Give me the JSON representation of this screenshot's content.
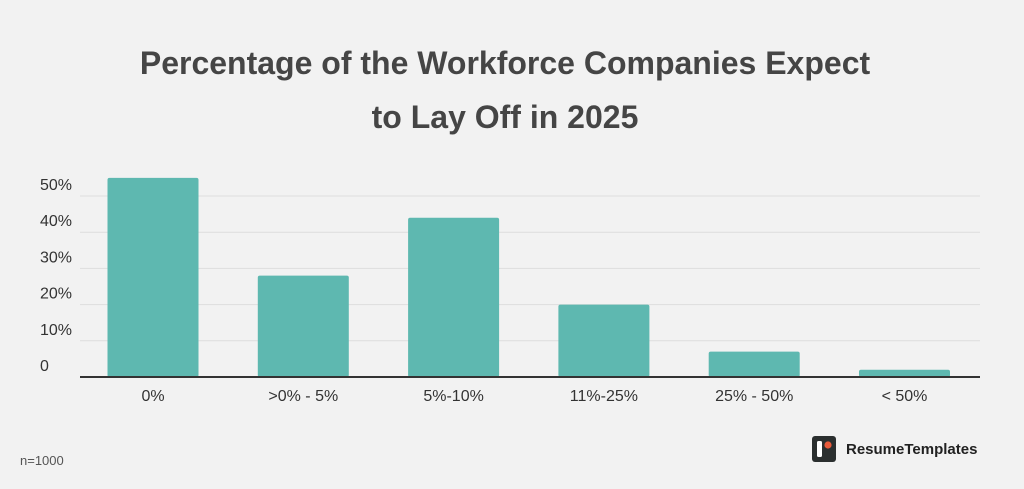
{
  "chart_data": {
    "type": "bar",
    "title": [
      "Percentage of the Workforce Companies Expect",
      "to Lay Off in 2025"
    ],
    "categories": [
      "0%",
      ">0% - 5%",
      "5%-10%",
      "11%-25%",
      "25% - 50%",
      "< 50%"
    ],
    "values": [
      55,
      28,
      44,
      20,
      7,
      2
    ],
    "ylim": [
      0,
      50
    ],
    "yticks": [
      0,
      10,
      20,
      30,
      40,
      50
    ],
    "ytick_labels": [
      "0",
      "10%",
      "20%",
      "30%",
      "40%",
      "50%"
    ],
    "xlabel": "",
    "ylabel": "",
    "grid": true,
    "bar_color": "#5eb8b0"
  },
  "footnote": "n=1000",
  "brand": {
    "name": "ResumeTemplates",
    "logo_icon": "resume-templates-logo-icon",
    "logo_color": "#2b2f2f",
    "accent_color": "#e85a3a"
  },
  "colors": {
    "background": "#f2f2f2",
    "title": "#454545",
    "axis": "#333333",
    "grid": "#dddddd"
  }
}
